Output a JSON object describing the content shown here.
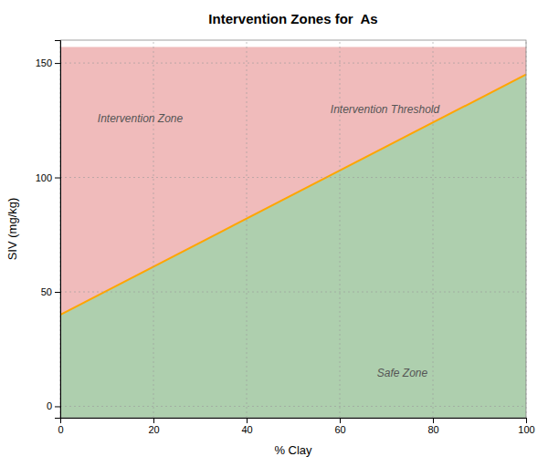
{
  "chart_data": {
    "type": "area",
    "title": "Intervention Zones for  As",
    "x_label": "% Clay",
    "y_label": "SIV (mg/kg)",
    "x": [
      0,
      100
    ],
    "series": [
      {
        "type": "area",
        "color": "#F0BBBB",
        "values": [
          40,
          145
        ],
        "top": 157
      },
      {
        "type": "area",
        "color": "#AECFAE",
        "values": [
          40,
          145
        ]
      },
      {
        "type": "line",
        "color": "#FFA500",
        "values": [
          40,
          145
        ]
      }
    ],
    "annotations": [
      {
        "text": "Intervention Zone",
        "x": 8,
        "y": 124
      },
      {
        "text": "Safe Zone",
        "x": 68,
        "y": 13
      },
      {
        "text": "Intervention Threshold",
        "x": 58,
        "y": 128
      }
    ],
    "xlim": [
      0,
      100
    ],
    "ylim": [
      -5,
      160
    ],
    "xticks": [
      0,
      20,
      40,
      60,
      80,
      100
    ],
    "yticks": [
      0,
      50,
      100,
      150
    ],
    "grid": true
  }
}
